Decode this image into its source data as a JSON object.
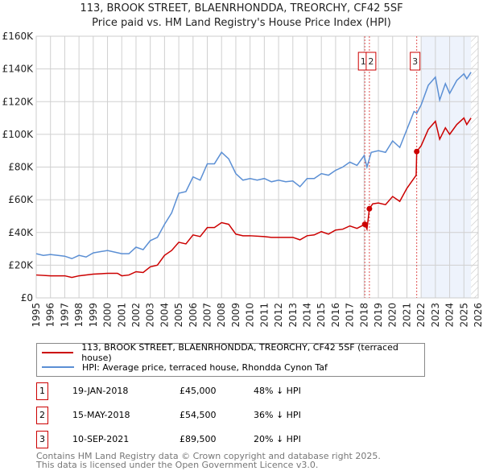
{
  "chart_data": {
    "type": "line",
    "title": "113, BROOK STREET, BLAENRHONDDA, TREORCHY, CF42 5SF",
    "subtitle": "Price paid vs. HM Land Registry's House Price Index (HPI)",
    "xlim": [
      1995,
      2026
    ],
    "ylim": [
      0,
      160000
    ],
    "yticks": [
      {
        "v": 0,
        "label": "£0"
      },
      {
        "v": 20000,
        "label": "£20K"
      },
      {
        "v": 40000,
        "label": "£40K"
      },
      {
        "v": 60000,
        "label": "£60K"
      },
      {
        "v": 80000,
        "label": "£80K"
      },
      {
        "v": 100000,
        "label": "£100K"
      },
      {
        "v": 120000,
        "label": "£120K"
      },
      {
        "v": 140000,
        "label": "£140K"
      },
      {
        "v": 160000,
        "label": "£160K"
      }
    ],
    "xticks": [
      "1995",
      "1996",
      "1997",
      "1998",
      "1999",
      "2000",
      "2001",
      "2002",
      "2003",
      "2004",
      "2005",
      "2006",
      "2007",
      "2008",
      "2009",
      "2010",
      "2011",
      "2012",
      "2013",
      "2014",
      "2015",
      "2016",
      "2017",
      "2018",
      "2019",
      "2020",
      "2021",
      "2022",
      "2023",
      "2024",
      "2025",
      "2026"
    ],
    "shaded_range": [
      2022,
      2025.5
    ],
    "hatched_from": 2025.5,
    "series": [
      {
        "name": "113, BROOK STREET, BLAENRHONDDA, TREORCHY, CF42 5SF (terraced house)",
        "color": "#cc0000",
        "x": [
          1995,
          1996,
          1997,
          1997.5,
          1998,
          1999,
          2000,
          2000.7,
          2001,
          2001.5,
          2002,
          2002.5,
          2003,
          2003.5,
          2004,
          2004.5,
          2005,
          2005.5,
          2006,
          2006.5,
          2007,
          2007.5,
          2008,
          2008.5,
          2009,
          2009.5,
          2010,
          2011,
          2011.5,
          2012,
          2013,
          2013.5,
          2014,
          2014.5,
          2015,
          2015.5,
          2016,
          2016.5,
          2017,
          2017.5,
          2018.05,
          2018.2,
          2018.37,
          2018.6,
          2019,
          2019.5,
          2020,
          2020.5,
          2021,
          2021.65,
          2021.69,
          2022,
          2022.5,
          2023,
          2023.3,
          2023.7,
          2024,
          2024.5,
          2025,
          2025.2,
          2025.5
        ],
        "y": [
          14000,
          13500,
          13500,
          12500,
          13500,
          14500,
          15000,
          15000,
          13500,
          14000,
          16000,
          15500,
          19000,
          20000,
          26000,
          29000,
          34000,
          33000,
          38500,
          37500,
          43000,
          43000,
          46000,
          45000,
          39000,
          38000,
          38000,
          37500,
          37000,
          37000,
          37000,
          35500,
          38000,
          38500,
          40500,
          39000,
          41500,
          42000,
          44000,
          42500,
          45000,
          42000,
          54500,
          57500,
          58000,
          57000,
          62000,
          59000,
          67000,
          75000,
          89500,
          93000,
          103000,
          108000,
          97000,
          104000,
          100000,
          106000,
          110000,
          106000,
          110000
        ]
      },
      {
        "name": "HPI: Average price, terraced house, Rhondda Cynon Taf",
        "color": "#5b8fd4",
        "x": [
          1995,
          1995.5,
          1996,
          1997,
          1997.5,
          1998,
          1998.5,
          1999,
          2000,
          2001,
          2001.5,
          2002,
          2002.5,
          2003,
          2003.5,
          2004,
          2004.5,
          2005,
          2005.5,
          2006,
          2006.5,
          2007,
          2007.5,
          2008,
          2008.5,
          2009,
          2009.5,
          2010,
          2010.5,
          2011,
          2011.5,
          2012,
          2012.5,
          2013,
          2013.5,
          2014,
          2014.5,
          2015,
          2015.5,
          2016,
          2016.5,
          2017,
          2017.5,
          2018,
          2018.2,
          2018.5,
          2019,
          2019.5,
          2020,
          2020.5,
          2021,
          2021.5,
          2021.7,
          2022,
          2022.5,
          2023,
          2023.3,
          2023.7,
          2024,
          2024.5,
          2025,
          2025.2,
          2025.5
        ],
        "y": [
          27000,
          26000,
          26500,
          25500,
          24000,
          26000,
          25000,
          27500,
          29000,
          27000,
          27000,
          31000,
          29500,
          35000,
          37000,
          45000,
          52000,
          64000,
          65000,
          74000,
          72000,
          82000,
          82000,
          89000,
          85000,
          76000,
          72000,
          73000,
          72000,
          73000,
          71000,
          72000,
          71000,
          71500,
          68000,
          73000,
          73000,
          76000,
          75000,
          78000,
          80000,
          83000,
          81000,
          87000,
          80000,
          89000,
          90000,
          89000,
          96000,
          92000,
          103000,
          114000,
          113000,
          118000,
          130000,
          135000,
          121000,
          131000,
          125000,
          133000,
          137000,
          134000,
          138000
        ]
      }
    ],
    "sales": [
      {
        "id": "1",
        "date": "19-JAN-2018",
        "x": 2018.05,
        "price": 45000,
        "price_label": "£45,000",
        "hpi": "48% ↓ HPI"
      },
      {
        "id": "2",
        "date": "15-MAY-2018",
        "x": 2018.37,
        "price": 54500,
        "price_label": "£54,500",
        "hpi": "36% ↓ HPI"
      },
      {
        "id": "3",
        "date": "10-SEP-2021",
        "x": 2021.69,
        "price": 89500,
        "price_label": "£89,500",
        "hpi": "20% ↓ HPI"
      }
    ]
  },
  "footer": {
    "line1": "Contains HM Land Registry data © Crown copyright and database right 2025.",
    "line2": "This data is licensed under the Open Government Licence v3.0."
  }
}
